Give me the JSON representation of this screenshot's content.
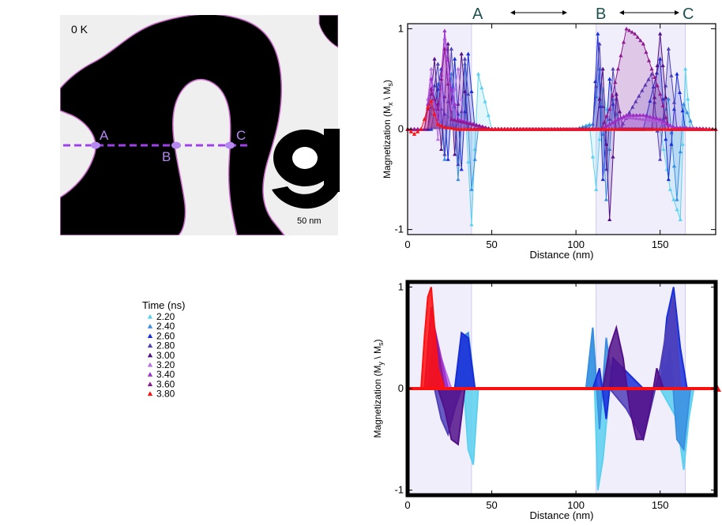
{
  "micrograph": {
    "temperature_label": "0 K",
    "scale_label": "50 nm",
    "points": [
      "A",
      "B",
      "C"
    ],
    "colors": {
      "domain": "#000000",
      "background": "#efefef",
      "wall": "#c868c8",
      "line": "#a040e8",
      "point": "#b488f0"
    }
  },
  "legend": {
    "title": "Time (ns)",
    "items": [
      {
        "label": "2.20",
        "color": "#5bd0f0"
      },
      {
        "label": "2.40",
        "color": "#3a8ee0"
      },
      {
        "label": "2.60",
        "color": "#1a2ed8"
      },
      {
        "label": "2.80",
        "color": "#5040b8"
      },
      {
        "label": "3.00",
        "color": "#52108a"
      },
      {
        "label": "3.20",
        "color": "#b870e8"
      },
      {
        "label": "3.40",
        "color": "#a030d0"
      },
      {
        "label": "3.60",
        "color": "#901890"
      },
      {
        "label": "3.80",
        "color": "#ff1010"
      }
    ]
  },
  "top_annotation": {
    "A": "A",
    "B": "B",
    "C": "C"
  },
  "chart_data": [
    {
      "type": "line",
      "xlabel": "Distance (nm)",
      "ylabel_main": "Magnetization (M",
      "ylabel_sub1": "x",
      "ylabel_mid": " \\ M",
      "ylabel_sub2": "s",
      "ylabel_end": ")",
      "xlim": [
        0,
        183
      ],
      "ylim": [
        -1.05,
        1.05
      ],
      "xticks": [
        "0",
        "50",
        "100",
        "150"
      ],
      "yticks": [
        "-1",
        "0",
        "1"
      ],
      "shaded_regions": [
        [
          0,
          38
        ],
        [
          112,
          165
        ]
      ],
      "series": [
        {
          "color": "#5bd0f0",
          "x": [
            0,
            10,
            30,
            34,
            38,
            42,
            50,
            100,
            108,
            112,
            116,
            120,
            150,
            156,
            162,
            165,
            168,
            183
          ],
          "y": [
            0,
            0,
            0.05,
            0.3,
            -0.95,
            0.55,
            0,
            0,
            0.05,
            -0.6,
            0.4,
            0,
            0,
            -0.6,
            -0.9,
            0.6,
            0,
            0
          ]
        },
        {
          "color": "#3a8ee0",
          "x": [
            0,
            12,
            18,
            22,
            26,
            30,
            34,
            38,
            42,
            50,
            100,
            110,
            114,
            118,
            122,
            126,
            150,
            155,
            160,
            164,
            170,
            183
          ],
          "y": [
            0,
            0,
            0.45,
            -0.3,
            0.55,
            -0.5,
            0.65,
            -0.6,
            0,
            0,
            0,
            0.05,
            0.6,
            -0.7,
            0.3,
            0,
            0,
            0.3,
            -0.7,
            0.25,
            0,
            0
          ]
        },
        {
          "color": "#1a2ed8",
          "x": [
            0,
            14,
            20,
            24,
            28,
            32,
            36,
            40,
            50,
            100,
            110,
            113,
            116,
            120,
            124,
            140,
            150,
            155,
            160,
            165,
            183
          ],
          "y": [
            0,
            0,
            0.6,
            -0.3,
            0.7,
            -0.4,
            0.75,
            0,
            0,
            0,
            0,
            0.95,
            -0.5,
            0.5,
            0,
            0,
            0.7,
            -0.5,
            0.55,
            0,
            0
          ]
        },
        {
          "color": "#5040b8",
          "x": [
            0,
            12,
            18,
            22,
            26,
            30,
            34,
            38,
            50,
            100,
            110,
            114,
            118,
            122,
            126,
            145,
            150,
            155,
            160,
            183
          ],
          "y": [
            0,
            0,
            0.65,
            -0.25,
            0.8,
            -0.35,
            0.7,
            0,
            0,
            0,
            0,
            0.85,
            -0.4,
            0.6,
            0,
            0.55,
            -0.3,
            0.8,
            0,
            0
          ]
        },
        {
          "color": "#52108a",
          "x": [
            0,
            12,
            16,
            20,
            24,
            28,
            32,
            36,
            50,
            100,
            112,
            116,
            120,
            124,
            128,
            145,
            150,
            155,
            183
          ],
          "y": [
            0,
            0,
            0.7,
            -0.2,
            0.85,
            -0.25,
            0.75,
            0,
            0,
            0,
            0,
            0.6,
            -0.9,
            0.35,
            0,
            0,
            0.95,
            0,
            0
          ]
        },
        {
          "color": "#b870e8",
          "x": [
            0,
            10,
            14,
            18,
            22,
            26,
            30,
            34,
            50,
            100,
            115,
            120,
            125,
            130,
            140,
            150,
            160,
            183
          ],
          "y": [
            0,
            0,
            0.6,
            -0.1,
            0.9,
            0.2,
            0.6,
            0,
            0,
            0,
            0,
            0.05,
            0.1,
            0.12,
            0.1,
            0.08,
            0,
            0
          ]
        },
        {
          "color": "#a030d0",
          "x": [
            0,
            10,
            14,
            18,
            22,
            26,
            30,
            50,
            100,
            115,
            120,
            125,
            130,
            140,
            150,
            158,
            183
          ],
          "y": [
            0,
            0,
            0.5,
            0.1,
            0.98,
            0.4,
            0.1,
            0,
            0,
            0,
            0.05,
            0.1,
            0.14,
            0.14,
            0.1,
            0.02,
            0
          ]
        },
        {
          "color": "#901890",
          "x": [
            0,
            10,
            14,
            18,
            22,
            26,
            50,
            100,
            115,
            120,
            125,
            130,
            135,
            140,
            145,
            150,
            155,
            183
          ],
          "y": [
            0,
            0,
            0.4,
            0.2,
            0.8,
            0.1,
            0,
            0,
            0,
            0.2,
            0.6,
            1.0,
            0.95,
            0.85,
            0.6,
            0.35,
            0,
            0
          ]
        },
        {
          "color": "#ff1010",
          "x": [
            0,
            4,
            8,
            10,
            12,
            14,
            16,
            18,
            22,
            30,
            183
          ],
          "y": [
            0,
            -0.05,
            0,
            0.1,
            0.22,
            0.28,
            0.15,
            0.05,
            0.02,
            0,
            0
          ]
        }
      ]
    },
    {
      "type": "area",
      "xlabel": "Distance (nm)",
      "ylabel_main": "Magnetization (M",
      "ylabel_sub1": "y",
      "ylabel_mid": " \\ M",
      "ylabel_sub2": "s",
      "ylabel_end": ")",
      "xlim": [
        0,
        183
      ],
      "ylim": [
        -1.05,
        1.05
      ],
      "xticks": [
        "0",
        "50",
        "100",
        "150"
      ],
      "yticks": [
        "-1",
        "0",
        "1"
      ],
      "shaded_regions": [
        [
          0,
          38
        ],
        [
          112,
          165
        ]
      ],
      "series": [
        {
          "color": "#5bd0f0",
          "x": [
            0,
            30,
            33,
            36,
            39,
            42,
            100,
            106,
            110,
            113,
            116,
            120,
            150,
            160,
            164,
            167,
            170,
            183
          ],
          "y": [
            0,
            0,
            0.1,
            -0.6,
            -0.75,
            0,
            0,
            0,
            0.6,
            -1.0,
            -0.7,
            0,
            0,
            -0.3,
            -0.8,
            -0.3,
            0,
            0
          ]
        },
        {
          "color": "#3a8ee0",
          "x": [
            0,
            28,
            32,
            36,
            40,
            100,
            106,
            110,
            114,
            118,
            122,
            150,
            156,
            160,
            164,
            168,
            183
          ],
          "y": [
            0,
            0,
            0.5,
            0.55,
            0,
            0,
            0,
            0.6,
            -0.4,
            0.5,
            0,
            0,
            0.4,
            -0.5,
            -0.6,
            0,
            0
          ]
        },
        {
          "color": "#1a2ed8",
          "x": [
            0,
            28,
            32,
            36,
            40,
            100,
            110,
            114,
            118,
            122,
            140,
            150,
            154,
            158,
            162,
            166,
            183
          ],
          "y": [
            0,
            0,
            0.55,
            0.5,
            0,
            0,
            0,
            0.2,
            -0.3,
            0.3,
            0,
            0,
            0.7,
            1.0,
            0.4,
            0,
            0
          ]
        },
        {
          "color": "#5040b8",
          "x": [
            0,
            16,
            20,
            24,
            28,
            32,
            100,
            120,
            130,
            140,
            150,
            154,
            158,
            162,
            183
          ],
          "y": [
            0,
            0,
            -0.3,
            -0.45,
            -0.2,
            0,
            0,
            0,
            -0.2,
            -0.5,
            0.2,
            0.6,
            0.9,
            0,
            0
          ]
        },
        {
          "color": "#52108a",
          "x": [
            0,
            18,
            22,
            26,
            30,
            34,
            100,
            116,
            120,
            124,
            128,
            132,
            136,
            140,
            144,
            148,
            152,
            183
          ],
          "y": [
            0,
            0,
            -0.2,
            -0.5,
            -0.55,
            0,
            0,
            0,
            0.4,
            0.6,
            0.3,
            -0.2,
            -0.5,
            -0.5,
            -0.2,
            0.2,
            0,
            0
          ]
        },
        {
          "color": "#b870e8",
          "x": [
            0,
            14,
            18,
            22,
            26,
            100,
            183
          ],
          "y": [
            0,
            0,
            0.4,
            0.2,
            0,
            0,
            0
          ]
        },
        {
          "color": "#a030d0",
          "x": [
            0,
            12,
            16,
            20,
            24,
            100,
            183
          ],
          "y": [
            0,
            0,
            0.6,
            0.3,
            0,
            0,
            0
          ]
        },
        {
          "color": "#901890",
          "x": [
            0,
            10,
            14,
            18,
            22,
            100,
            183
          ],
          "y": [
            0,
            0,
            0.8,
            0.4,
            0,
            0,
            0
          ]
        },
        {
          "color": "#ff1010",
          "x": [
            0,
            8,
            10,
            12,
            14,
            16,
            18,
            22,
            183
          ],
          "y": [
            0,
            0,
            0.5,
            0.9,
            1.0,
            0.6,
            0.2,
            0,
            0
          ]
        }
      ]
    }
  ]
}
